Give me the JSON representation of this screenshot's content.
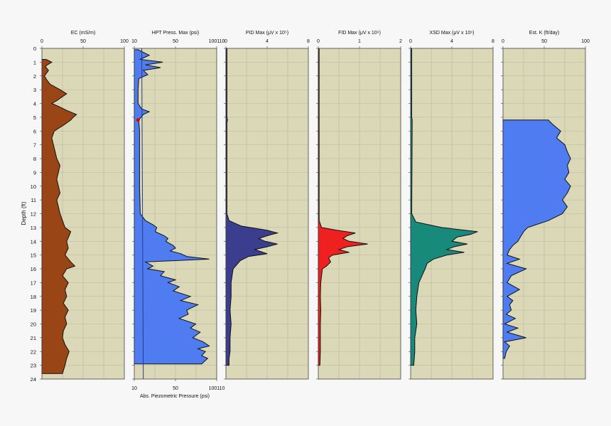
{
  "figure": {
    "depth_axis": {
      "label": "Depth (ft)",
      "ticks": [
        "0",
        "1",
        "2",
        "3",
        "4",
        "5",
        "6",
        "7",
        "8",
        "9",
        "10",
        "11",
        "12",
        "13",
        "14",
        "15",
        "16",
        "17",
        "18",
        "19",
        "20",
        "21",
        "22",
        "23",
        "24"
      ],
      "range": [
        0,
        24
      ]
    },
    "bottom_axis": {
      "label": "Abs. Piezometric Pressure (psi)",
      "ticks": [
        "10",
        "50",
        "100110"
      ],
      "color": "#2a3a8c"
    }
  },
  "chart_data": [
    {
      "type": "area",
      "title": "EC (mS/m)",
      "xlim": [
        0,
        100
      ],
      "xticks": [
        "0",
        "50",
        "100"
      ],
      "fill": "#9a4515",
      "depth_range": [
        0.8,
        23.6
      ],
      "series": [
        {
          "depth": [
            0.8,
            1.0,
            1.3,
            1.6,
            2.0,
            2.3,
            2.6,
            3.0,
            3.3,
            3.5,
            3.8,
            4.0,
            4.2,
            4.5,
            4.8,
            5.0,
            5.2,
            5.5,
            6.0,
            6.5,
            7.0,
            7.5,
            8.0,
            8.5,
            9.0,
            9.5,
            10.0,
            10.5,
            11.0,
            11.5,
            12.0,
            12.5,
            13.0,
            13.3,
            13.6,
            14.0,
            14.5,
            15.0,
            15.5,
            15.8,
            16.0,
            16.5,
            17.0,
            17.5,
            18.0,
            18.5,
            19.0,
            19.5,
            20.0,
            20.5,
            21.0,
            21.5,
            22.0,
            22.5,
            23.0,
            23.6
          ],
          "values": [
            5,
            12,
            4,
            8,
            3,
            6,
            10,
            22,
            30,
            25,
            18,
            12,
            20,
            30,
            42,
            38,
            35,
            28,
            15,
            12,
            14,
            16,
            18,
            22,
            20,
            18,
            20,
            22,
            18,
            20,
            22,
            25,
            28,
            35,
            33,
            30,
            32,
            28,
            35,
            40,
            30,
            25,
            32,
            28,
            30,
            26,
            32,
            28,
            30,
            26,
            25,
            28,
            33,
            30,
            28,
            25
          ]
        }
      ]
    },
    {
      "type": "area",
      "title": "HPT Press. Max (psi)",
      "xlim": [
        0,
        110
      ],
      "xticks": [
        "10",
        "50",
        "100110"
      ],
      "fill": "#4f7cf0",
      "depth_range": [
        0.1,
        22.9
      ],
      "series": [
        {
          "name": "HPT Press. Max",
          "depth": [
            0.1,
            0.5,
            0.8,
            1.0,
            1.2,
            1.4,
            1.6,
            1.9,
            2.2,
            3.0,
            4.0,
            4.4,
            4.6,
            4.8,
            5.2,
            6.0,
            8.0,
            10.0,
            12.0,
            12.5,
            12.8,
            13.0,
            13.3,
            13.6,
            13.8,
            14.0,
            14.3,
            14.5,
            14.7,
            14.9,
            15.1,
            15.3,
            15.5,
            15.8,
            16.0,
            16.2,
            16.5,
            16.8,
            17.0,
            17.3,
            17.6,
            18.0,
            18.3,
            18.6,
            19.0,
            19.3,
            19.6,
            20.0,
            20.3,
            20.6,
            21.0,
            21.3,
            21.6,
            21.8,
            22.0,
            22.3,
            22.5,
            22.9
          ],
          "values": [
            5,
            20,
            8,
            38,
            15,
            35,
            12,
            18,
            6,
            5,
            5,
            10,
            20,
            12,
            6,
            7,
            7,
            7,
            8,
            15,
            25,
            30,
            28,
            40,
            45,
            42,
            52,
            55,
            48,
            62,
            70,
            100,
            15,
            25,
            18,
            40,
            35,
            55,
            45,
            60,
            52,
            75,
            62,
            85,
            70,
            72,
            60,
            82,
            75,
            88,
            78,
            92,
            100,
            85,
            95,
            90,
            98,
            90
          ]
        },
        {
          "name": "Abs. Piezometric Pressure",
          "depth": [
            0,
            24
          ],
          "values": [
            10,
            12
          ],
          "color": "#2a3a8c"
        }
      ],
      "markers": [
        {
          "depth": 5.2,
          "value": 5,
          "color": "#e00000"
        }
      ]
    },
    {
      "type": "area",
      "title": "PID Max (μV x 10⁵)",
      "xlim": [
        0,
        8
      ],
      "xticks": [
        "0",
        "4",
        "8"
      ],
      "fill": "#3b3d8f",
      "depth_range": [
        0,
        23
      ],
      "series": [
        {
          "depth": [
            0,
            5.0,
            5.2,
            5.4,
            12.0,
            12.5,
            12.9,
            13.2,
            13.4,
            13.6,
            13.8,
            14.0,
            14.2,
            14.4,
            14.6,
            14.9,
            15.1,
            15.4,
            16.0,
            17.0,
            18.0,
            19.0,
            20.0,
            21.0,
            22.0,
            22.5,
            23.0
          ],
          "values": [
            0.1,
            0.1,
            0.15,
            0.1,
            0.1,
            0.3,
            1.5,
            4.0,
            5.0,
            4.0,
            3.2,
            3.8,
            5.0,
            4.0,
            2.8,
            4.0,
            2.2,
            1.4,
            0.7,
            0.5,
            0.5,
            0.4,
            0.5,
            0.4,
            0.4,
            0.3,
            0.3
          ]
        }
      ]
    },
    {
      "type": "area",
      "title": "FID Max (μV x 10⁶)",
      "xlim": [
        0,
        2
      ],
      "xticks": [
        "0",
        "1",
        "2"
      ],
      "fill": "#ef2020",
      "depth_range": [
        0,
        23
      ],
      "series": [
        {
          "depth": [
            0,
            12.5,
            13.0,
            13.2,
            13.4,
            13.6,
            13.8,
            14.0,
            14.2,
            14.4,
            14.6,
            14.8,
            15.0,
            15.2,
            15.5,
            15.8,
            16.0,
            16.5,
            17.0,
            18.0,
            19.0,
            20.0,
            21.0,
            22.0,
            23.0
          ],
          "values": [
            0.02,
            0.02,
            0.08,
            0.45,
            0.9,
            0.7,
            0.6,
            0.75,
            1.2,
            0.7,
            0.5,
            0.75,
            0.35,
            0.25,
            0.3,
            0.2,
            0.1,
            0.08,
            0.06,
            0.05,
            0.06,
            0.05,
            0.05,
            0.05,
            0.04
          ]
        }
      ]
    },
    {
      "type": "area",
      "title": "XSD Max (μV x 10⁶)",
      "xlim": [
        0,
        8
      ],
      "xticks": [
        "0",
        "4",
        "8"
      ],
      "fill": "#178a7c",
      "depth_range": [
        0,
        23
      ],
      "series": [
        {
          "depth": [
            0,
            5.0,
            5.2,
            12.0,
            12.6,
            13.0,
            13.3,
            13.5,
            13.7,
            14.0,
            14.2,
            14.4,
            14.6,
            14.8,
            15.0,
            15.3,
            15.6,
            16.0,
            16.5,
            17.0,
            18.0,
            19.0,
            20.0,
            21.0,
            22.0,
            23.0
          ],
          "values": [
            0.1,
            0.1,
            0.15,
            0.1,
            0.5,
            3.0,
            6.5,
            5.8,
            4.5,
            4.0,
            5.5,
            4.2,
            3.5,
            5.2,
            3.5,
            2.2,
            1.6,
            1.4,
            1.1,
            0.8,
            0.6,
            0.5,
            0.6,
            0.4,
            0.4,
            0.3
          ]
        }
      ]
    },
    {
      "type": "area",
      "title": "Est. K (ft/day)",
      "xlim": [
        0,
        100
      ],
      "xticks": [
        "0",
        "50",
        "100"
      ],
      "fill": "#4f7cf0",
      "depth_range": [
        5.2,
        22.5
      ],
      "series": [
        {
          "depth": [
            5.2,
            5.5,
            6.0,
            6.5,
            7.0,
            7.5,
            8.0,
            8.5,
            9.0,
            9.5,
            10.0,
            10.5,
            11.0,
            11.5,
            12.0,
            12.5,
            12.8,
            13.0,
            13.3,
            13.6,
            14.0,
            14.3,
            14.6,
            15.0,
            15.3,
            15.6,
            16.0,
            16.5,
            17.0,
            17.5,
            18.0,
            18.3,
            18.6,
            19.0,
            19.3,
            19.6,
            20.0,
            20.3,
            20.6,
            21.0,
            21.3,
            21.6,
            22.0,
            22.5
          ],
          "values": [
            55,
            60,
            70,
            65,
            75,
            78,
            82,
            78,
            80,
            75,
            82,
            78,
            72,
            78,
            72,
            55,
            40,
            30,
            25,
            22,
            18,
            12,
            8,
            5,
            20,
            5,
            28,
            10,
            5,
            20,
            5,
            12,
            8,
            10,
            4,
            15,
            2,
            18,
            5,
            28,
            2,
            8,
            4,
            2
          ]
        }
      ]
    }
  ]
}
